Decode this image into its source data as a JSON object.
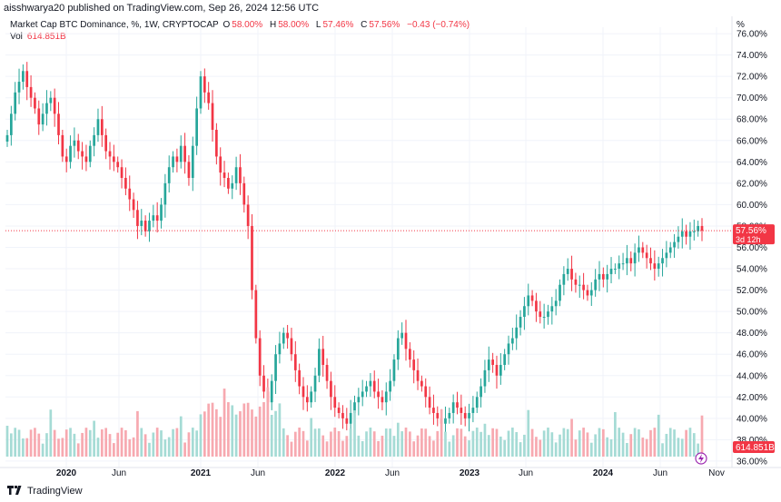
{
  "header": {
    "published": "aisshwarya20 published on TradingView.com, Sep 26, 2024 12:56 UTC"
  },
  "legend": {
    "title": "Market Cap BTC Dominance, %, 1W, CRYPTOCAP",
    "o_label": "O",
    "o_value": "58.00%",
    "h_label": "H",
    "h_value": "58.00%",
    "l_label": "L",
    "l_value": "57.46%",
    "c_label": "C",
    "c_value": "57.56%",
    "change": "−0.43 (−0.74%)",
    "vol_label": "Vol",
    "vol_value": "614.851B"
  },
  "axis": {
    "unit": "%"
  },
  "last_price_tag": {
    "price": "57.56%",
    "countdown": "3d 12h"
  },
  "volume_tag": "614.851B",
  "footer": {
    "brand": "TradingView"
  },
  "colors": {
    "up": "#26a69a",
    "down": "#f23645",
    "up_vol": "#a5dbd5",
    "down_vol": "#f7a9b0",
    "grid": "#f0f3fa",
    "text": "#131722"
  },
  "chart_data": {
    "type": "candlestick",
    "symbol": "Market Cap BTC Dominance",
    "interval": "1W",
    "ylim": [
      35.4,
      76.6
    ],
    "y_ticks": [
      "36.00%",
      "38.00%",
      "40.00%",
      "42.00%",
      "44.00%",
      "46.00%",
      "48.00%",
      "50.00%",
      "52.00%",
      "54.00%",
      "56.00%",
      "58.00%",
      "60.00%",
      "62.00%",
      "64.00%",
      "66.00%",
      "68.00%",
      "70.00%",
      "72.00%",
      "74.00%",
      "76.00%"
    ],
    "x_ticks": [
      "2020",
      "Jun",
      "2021",
      "Jun",
      "2022",
      "Jun",
      "2023",
      "Jun",
      "2024",
      "Jun",
      "Nov"
    ],
    "close_series": [
      66.5,
      68.5,
      70.5,
      71.5,
      72.5,
      71.0,
      70.0,
      69.0,
      67.5,
      68.5,
      69.5,
      70.0,
      68.5,
      66.5,
      64.5,
      64.0,
      65.5,
      66.0,
      65.0,
      64.5,
      64.0,
      65.5,
      66.5,
      68.0,
      66.5,
      65.0,
      64.5,
      64.0,
      63.5,
      62.5,
      61.5,
      60.5,
      59.5,
      58.0,
      58.5,
      57.5,
      58.5,
      59.0,
      58.5,
      60.0,
      62.0,
      63.5,
      64.5,
      64.0,
      65.5,
      64.0,
      62.5,
      65.5,
      69.0,
      72.0,
      70.5,
      69.5,
      67.0,
      64.5,
      63.0,
      62.5,
      61.5,
      62.0,
      63.5,
      62.0,
      60.0,
      58.0,
      52.0,
      47.5,
      44.0,
      42.5,
      41.5,
      43.5,
      46.0,
      47.0,
      48.0,
      47.5,
      46.0,
      44.5,
      43.0,
      42.0,
      41.5,
      42.5,
      44.0,
      46.5,
      45.0,
      43.5,
      42.0,
      41.0,
      40.5,
      40.0,
      39.5,
      40.5,
      41.5,
      42.0,
      42.5,
      43.0,
      43.5,
      42.5,
      42.0,
      41.5,
      42.5,
      43.5,
      45.5,
      47.5,
      48.0,
      46.5,
      45.5,
      44.5,
      43.5,
      43.0,
      42.0,
      41.0,
      40.5,
      40.0,
      39.5,
      40.0,
      40.5,
      41.5,
      41.0,
      40.5,
      40.0,
      40.5,
      41.0,
      42.0,
      43.0,
      44.5,
      45.5,
      45.0,
      44.0,
      45.0,
      46.0,
      47.0,
      47.5,
      48.5,
      49.5,
      50.5,
      51.5,
      51.0,
      50.0,
      49.5,
      49.5,
      50.0,
      50.5,
      51.0,
      52.5,
      53.5,
      54.0,
      53.0,
      52.5,
      52.5,
      52.0,
      51.5,
      52.0,
      53.0,
      53.5,
      53.0,
      53.5,
      54.0,
      54.0,
      54.5,
      54.5,
      55.0,
      54.5,
      55.5,
      56.0,
      55.5,
      55.0,
      54.5,
      54.0,
      54.5,
      55.0,
      55.5,
      56.0,
      56.5,
      57.0,
      57.5,
      57.0,
      57.5,
      57.5,
      58.0,
      57.56
    ]
  }
}
